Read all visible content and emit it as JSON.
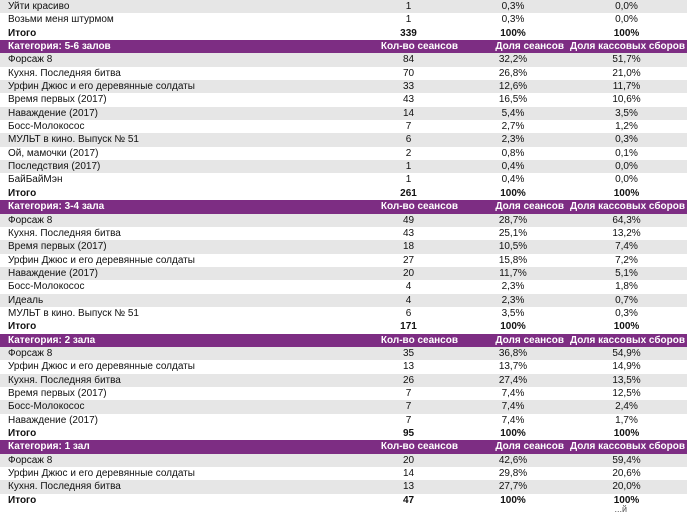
{
  "colors": {
    "header_bg": "#7d2d83",
    "alt_row": "#e6e6e6"
  },
  "top_rows": [
    {
      "title": "Уйти красиво",
      "sessions": "1",
      "share_sessions": "0,3%",
      "share_box": "0,0%"
    },
    {
      "title": "Возьми меня штурмом",
      "sessions": "1",
      "share_sessions": "0,3%",
      "share_box": "0,0%"
    }
  ],
  "top_total": {
    "label": "Итого",
    "sessions": "339",
    "share_sessions": "100%",
    "share_box": "100%"
  },
  "sections": [
    {
      "category": "Категория: 5-6 залов",
      "col_sessions": "Кол-во сеансов",
      "col_share_sessions": "Доля сеансов",
      "col_share_box": "Доля кассовых сборов",
      "rows": [
        {
          "title": "Форсаж 8",
          "sessions": "84",
          "share_sessions": "32,2%",
          "share_box": "51,7%"
        },
        {
          "title": "Кухня. Последняя битва",
          "sessions": "70",
          "share_sessions": "26,8%",
          "share_box": "21,0%"
        },
        {
          "title": "Урфин Джюс и его деревянные солдаты",
          "sessions": "33",
          "share_sessions": "12,6%",
          "share_box": "11,7%"
        },
        {
          "title": "Время первых (2017)",
          "sessions": "43",
          "share_sessions": "16,5%",
          "share_box": "10,6%"
        },
        {
          "title": "Наваждение (2017)",
          "sessions": "14",
          "share_sessions": "5,4%",
          "share_box": "3,5%"
        },
        {
          "title": "Босс-Молокосос",
          "sessions": "7",
          "share_sessions": "2,7%",
          "share_box": "1,2%"
        },
        {
          "title": "МУЛЬТ в кино. Выпуск № 51",
          "sessions": "6",
          "share_sessions": "2,3%",
          "share_box": "0,3%"
        },
        {
          "title": "Ой, мамочки (2017)",
          "sessions": "2",
          "share_sessions": "0,8%",
          "share_box": "0,1%"
        },
        {
          "title": "Последствия (2017)",
          "sessions": "1",
          "share_sessions": "0,4%",
          "share_box": "0,0%"
        },
        {
          "title": "БайБайМэн",
          "sessions": "1",
          "share_sessions": "0,4%",
          "share_box": "0,0%"
        }
      ],
      "total": {
        "label": "Итого",
        "sessions": "261",
        "share_sessions": "100%",
        "share_box": "100%"
      }
    },
    {
      "category": "Категория: 3-4 зала",
      "col_sessions": "Кол-во сеансов",
      "col_share_sessions": "Доля сеансов",
      "col_share_box": "Доля кассовых сборов",
      "rows": [
        {
          "title": "Форсаж 8",
          "sessions": "49",
          "share_sessions": "28,7%",
          "share_box": "64,3%"
        },
        {
          "title": "Кухня. Последняя битва",
          "sessions": "43",
          "share_sessions": "25,1%",
          "share_box": "13,2%"
        },
        {
          "title": "Время первых (2017)",
          "sessions": "18",
          "share_sessions": "10,5%",
          "share_box": "7,4%"
        },
        {
          "title": "Урфин Джюс и его деревянные солдаты",
          "sessions": "27",
          "share_sessions": "15,8%",
          "share_box": "7,2%"
        },
        {
          "title": "Наваждение (2017)",
          "sessions": "20",
          "share_sessions": "11,7%",
          "share_box": "5,1%"
        },
        {
          "title": "Босс-Молокосос",
          "sessions": "4",
          "share_sessions": "2,3%",
          "share_box": "1,8%"
        },
        {
          "title": "Идеаль",
          "sessions": "4",
          "share_sessions": "2,3%",
          "share_box": "0,7%"
        },
        {
          "title": "МУЛЬТ в кино. Выпуск № 51",
          "sessions": "6",
          "share_sessions": "3,5%",
          "share_box": "0,3%"
        }
      ],
      "total": {
        "label": "Итого",
        "sessions": "171",
        "share_sessions": "100%",
        "share_box": "100%"
      }
    },
    {
      "category": "Категория: 2 зала",
      "col_sessions": "Кол-во сеансов",
      "col_share_sessions": "Доля сеансов",
      "col_share_box": "Доля кассовых сборов",
      "rows": [
        {
          "title": "Форсаж 8",
          "sessions": "35",
          "share_sessions": "36,8%",
          "share_box": "54,9%"
        },
        {
          "title": "Урфин Джюс и его деревянные солдаты",
          "sessions": "13",
          "share_sessions": "13,7%",
          "share_box": "14,9%"
        },
        {
          "title": "Кухня. Последняя битва",
          "sessions": "26",
          "share_sessions": "27,4%",
          "share_box": "13,5%"
        },
        {
          "title": "Время первых (2017)",
          "sessions": "7",
          "share_sessions": "7,4%",
          "share_box": "12,5%"
        },
        {
          "title": "Босс-Молокосос",
          "sessions": "7",
          "share_sessions": "7,4%",
          "share_box": "2,4%"
        },
        {
          "title": "Наваждение (2017)",
          "sessions": "7",
          "share_sessions": "7,4%",
          "share_box": "1,7%"
        }
      ],
      "total": {
        "label": "Итого",
        "sessions": "95",
        "share_sessions": "100%",
        "share_box": "100%"
      }
    },
    {
      "category": "Категория: 1 зал",
      "col_sessions": "Кол-во сеансов",
      "col_share_sessions": "Доля сеансов",
      "col_share_box": "Доля кассовых сборов",
      "rows": [
        {
          "title": "Форсаж 8",
          "sessions": "20",
          "share_sessions": "42,6%",
          "share_box": "59,4%"
        },
        {
          "title": "Урфин Джюс и его деревянные солдаты",
          "sessions": "14",
          "share_sessions": "29,8%",
          "share_box": "20,6%"
        },
        {
          "title": "Кухня. Последняя битва",
          "sessions": "13",
          "share_sessions": "27,7%",
          "share_box": "20,0%"
        }
      ],
      "total": {
        "label": "Итого",
        "sessions": "47",
        "share_sessions": "100%",
        "share_box": "100%"
      }
    }
  ],
  "trailing_fragment": "...й"
}
